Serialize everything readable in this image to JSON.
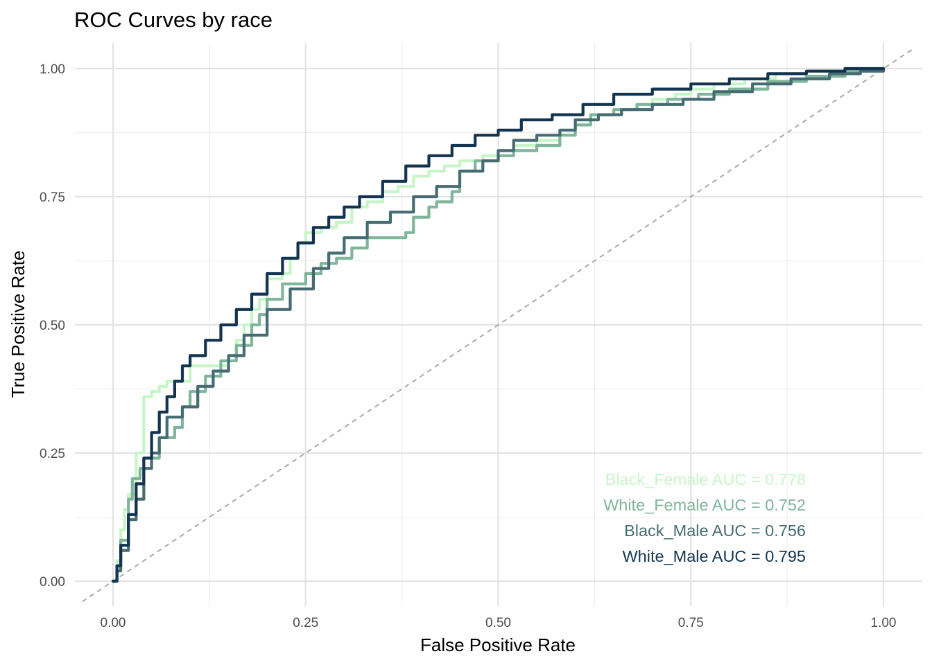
{
  "chart_data": {
    "type": "line",
    "title": "ROC Curves by race",
    "xlabel": "False Positive Rate",
    "ylabel": "True Positive Rate",
    "xlim": [
      -0.04,
      1.04
    ],
    "ylim": [
      -0.04,
      1.05
    ],
    "x_ticks": [
      "0.00",
      "0.25",
      "0.50",
      "0.75",
      "1.00"
    ],
    "y_ticks": [
      "0.00",
      "0.25",
      "0.50",
      "0.75",
      "1.00"
    ],
    "grid": true,
    "reference_line": "diagonal dashed",
    "reference_color": "#aaaaaa",
    "series": [
      {
        "name": "Black_Female",
        "auc_label": "Black_Female AUC = 0.778",
        "color": "#c8f5c8",
        "points": [
          [
            0,
            0
          ],
          [
            0.005,
            0.04
          ],
          [
            0.01,
            0.1
          ],
          [
            0.015,
            0.14
          ],
          [
            0.02,
            0.17
          ],
          [
            0.03,
            0.25
          ],
          [
            0.04,
            0.31
          ],
          [
            0.04,
            0.36
          ],
          [
            0.05,
            0.37
          ],
          [
            0.06,
            0.38
          ],
          [
            0.07,
            0.39
          ],
          [
            0.09,
            0.39
          ],
          [
            0.1,
            0.42
          ],
          [
            0.12,
            0.42
          ],
          [
            0.13,
            0.42
          ],
          [
            0.15,
            0.44
          ],
          [
            0.16,
            0.47
          ],
          [
            0.17,
            0.5
          ],
          [
            0.18,
            0.53
          ],
          [
            0.19,
            0.55
          ],
          [
            0.2,
            0.59
          ],
          [
            0.22,
            0.6
          ],
          [
            0.23,
            0.63
          ],
          [
            0.24,
            0.66
          ],
          [
            0.25,
            0.68
          ],
          [
            0.27,
            0.69
          ],
          [
            0.29,
            0.7
          ],
          [
            0.31,
            0.73
          ],
          [
            0.33,
            0.74
          ],
          [
            0.35,
            0.76
          ],
          [
            0.37,
            0.77
          ],
          [
            0.39,
            0.79
          ],
          [
            0.41,
            0.8
          ],
          [
            0.43,
            0.81
          ],
          [
            0.45,
            0.82
          ],
          [
            0.48,
            0.83
          ],
          [
            0.5,
            0.84
          ],
          [
            0.52,
            0.85
          ],
          [
            0.55,
            0.86
          ],
          [
            0.58,
            0.87
          ],
          [
            0.6,
            0.9
          ],
          [
            0.62,
            0.91
          ],
          [
            0.65,
            0.92
          ],
          [
            0.68,
            0.93
          ],
          [
            0.7,
            0.94
          ],
          [
            0.73,
            0.95
          ],
          [
            0.75,
            0.96
          ],
          [
            0.78,
            0.97
          ],
          [
            0.82,
            0.98
          ],
          [
            0.86,
            0.99
          ],
          [
            0.9,
            0.995
          ],
          [
            0.95,
            1.0
          ],
          [
            1.0,
            1.0
          ]
        ]
      },
      {
        "name": "White_Female",
        "auc_label": "White_Female AUC = 0.752",
        "color": "#7fb59a",
        "points": [
          [
            0,
            0
          ],
          [
            0.005,
            0.03
          ],
          [
            0.01,
            0.08
          ],
          [
            0.02,
            0.16
          ],
          [
            0.025,
            0.2
          ],
          [
            0.035,
            0.22
          ],
          [
            0.04,
            0.24
          ],
          [
            0.06,
            0.28
          ],
          [
            0.08,
            0.3
          ],
          [
            0.09,
            0.34
          ],
          [
            0.1,
            0.37
          ],
          [
            0.12,
            0.4
          ],
          [
            0.14,
            0.43
          ],
          [
            0.16,
            0.46
          ],
          [
            0.18,
            0.5
          ],
          [
            0.19,
            0.52
          ],
          [
            0.2,
            0.55
          ],
          [
            0.22,
            0.58
          ],
          [
            0.25,
            0.6
          ],
          [
            0.27,
            0.62
          ],
          [
            0.29,
            0.63
          ],
          [
            0.31,
            0.65
          ],
          [
            0.33,
            0.67
          ],
          [
            0.36,
            0.67
          ],
          [
            0.38,
            0.68
          ],
          [
            0.39,
            0.71
          ],
          [
            0.41,
            0.73
          ],
          [
            0.42,
            0.74
          ],
          [
            0.44,
            0.76
          ],
          [
            0.45,
            0.8
          ],
          [
            0.47,
            0.82
          ],
          [
            0.5,
            0.83
          ],
          [
            0.52,
            0.84
          ],
          [
            0.55,
            0.85
          ],
          [
            0.57,
            0.85
          ],
          [
            0.58,
            0.87
          ],
          [
            0.6,
            0.89
          ],
          [
            0.62,
            0.91
          ],
          [
            0.65,
            0.92
          ],
          [
            0.68,
            0.93
          ],
          [
            0.72,
            0.94
          ],
          [
            0.76,
            0.95
          ],
          [
            0.8,
            0.96
          ],
          [
            0.85,
            0.975
          ],
          [
            0.9,
            0.985
          ],
          [
            0.95,
            0.995
          ],
          [
            1.0,
            1.0
          ]
        ]
      },
      {
        "name": "Black_Male",
        "auc_label": "Black_Male AUC = 0.756",
        "color": "#456b73",
        "points": [
          [
            0,
            0
          ],
          [
            0.005,
            0.02
          ],
          [
            0.01,
            0.06
          ],
          [
            0.02,
            0.12
          ],
          [
            0.03,
            0.16
          ],
          [
            0.04,
            0.22
          ],
          [
            0.05,
            0.25
          ],
          [
            0.06,
            0.28
          ],
          [
            0.07,
            0.32
          ],
          [
            0.09,
            0.34
          ],
          [
            0.11,
            0.38
          ],
          [
            0.13,
            0.41
          ],
          [
            0.15,
            0.44
          ],
          [
            0.17,
            0.48
          ],
          [
            0.2,
            0.53
          ],
          [
            0.23,
            0.57
          ],
          [
            0.26,
            0.61
          ],
          [
            0.28,
            0.64
          ],
          [
            0.3,
            0.67
          ],
          [
            0.33,
            0.7
          ],
          [
            0.36,
            0.72
          ],
          [
            0.39,
            0.75
          ],
          [
            0.42,
            0.77
          ],
          [
            0.45,
            0.8
          ],
          [
            0.48,
            0.82
          ],
          [
            0.5,
            0.84
          ],
          [
            0.52,
            0.86
          ],
          [
            0.55,
            0.87
          ],
          [
            0.58,
            0.88
          ],
          [
            0.6,
            0.9
          ],
          [
            0.63,
            0.91
          ],
          [
            0.66,
            0.92
          ],
          [
            0.7,
            0.93
          ],
          [
            0.74,
            0.94
          ],
          [
            0.78,
            0.955
          ],
          [
            0.83,
            0.97
          ],
          [
            0.88,
            0.98
          ],
          [
            0.93,
            0.99
          ],
          [
            0.97,
            0.995
          ],
          [
            1.0,
            1.0
          ]
        ]
      },
      {
        "name": "White_Male",
        "auc_label": "White_Male AUC = 0.795",
        "color": "#133450",
        "points": [
          [
            0,
            0
          ],
          [
            0.005,
            0.03
          ],
          [
            0.01,
            0.07
          ],
          [
            0.02,
            0.13
          ],
          [
            0.03,
            0.19
          ],
          [
            0.04,
            0.24
          ],
          [
            0.05,
            0.29
          ],
          [
            0.06,
            0.33
          ],
          [
            0.07,
            0.36
          ],
          [
            0.08,
            0.39
          ],
          [
            0.09,
            0.42
          ],
          [
            0.1,
            0.44
          ],
          [
            0.12,
            0.47
          ],
          [
            0.14,
            0.5
          ],
          [
            0.16,
            0.53
          ],
          [
            0.18,
            0.56
          ],
          [
            0.2,
            0.6
          ],
          [
            0.22,
            0.63
          ],
          [
            0.24,
            0.66
          ],
          [
            0.26,
            0.69
          ],
          [
            0.28,
            0.71
          ],
          [
            0.3,
            0.73
          ],
          [
            0.32,
            0.75
          ],
          [
            0.35,
            0.78
          ],
          [
            0.38,
            0.81
          ],
          [
            0.41,
            0.83
          ],
          [
            0.44,
            0.85
          ],
          [
            0.47,
            0.87
          ],
          [
            0.5,
            0.88
          ],
          [
            0.53,
            0.9
          ],
          [
            0.57,
            0.91
          ],
          [
            0.61,
            0.93
          ],
          [
            0.65,
            0.95
          ],
          [
            0.7,
            0.96
          ],
          [
            0.75,
            0.97
          ],
          [
            0.8,
            0.98
          ],
          [
            0.85,
            0.99
          ],
          [
            0.9,
            0.995
          ],
          [
            0.95,
            1.0
          ],
          [
            1.0,
            1.0
          ]
        ]
      }
    ]
  }
}
